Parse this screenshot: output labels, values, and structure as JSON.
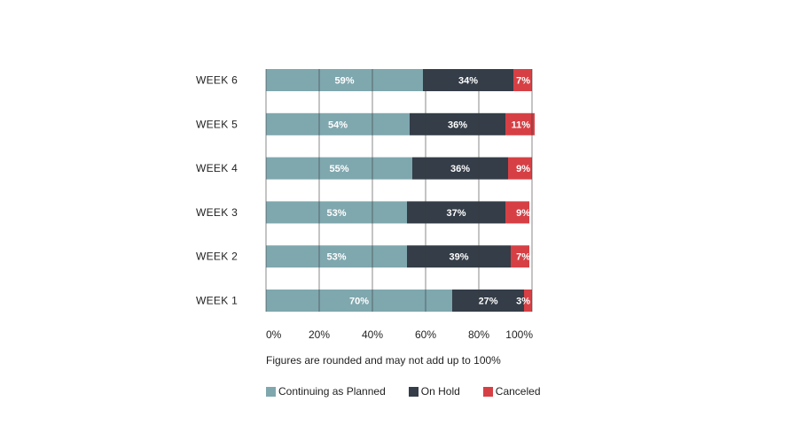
{
  "chart_data": {
    "type": "bar",
    "orientation": "horizontal",
    "stacked": true,
    "title": "",
    "xlabel": "",
    "ylabel": "",
    "xlim": [
      0,
      100
    ],
    "x_ticks": [
      "0%",
      "20%",
      "40%",
      "60%",
      "80%",
      "100%"
    ],
    "grid": "vertical lines at 20% intervals",
    "categories": [
      "WEEK 6",
      "WEEK 5",
      "WEEK 4",
      "WEEK 3",
      "WEEK 2",
      "WEEK 1"
    ],
    "series": [
      {
        "name": "Continuing as Planned",
        "color": "#7fa7ae",
        "values": [
          59,
          54,
          55,
          53,
          53,
          70
        ],
        "labels": [
          "59%",
          "54%",
          "55%",
          "53%",
          "53%",
          "70%"
        ]
      },
      {
        "name": "On Hold",
        "color": "#343d48",
        "values": [
          34,
          36,
          36,
          37,
          39,
          27
        ],
        "labels": [
          "34%",
          "36%",
          "36%",
          "37%",
          "39%",
          "27%"
        ]
      },
      {
        "name": "Canceled",
        "color": "#d64045",
        "values": [
          7,
          11,
          9,
          9,
          7,
          3
        ],
        "labels": [
          "7%",
          "11%",
          "9%",
          "9%",
          "7%",
          "3%"
        ]
      }
    ],
    "legend_position": "bottom-left"
  },
  "footnote": "Figures are rounded and may not add up to 100%"
}
